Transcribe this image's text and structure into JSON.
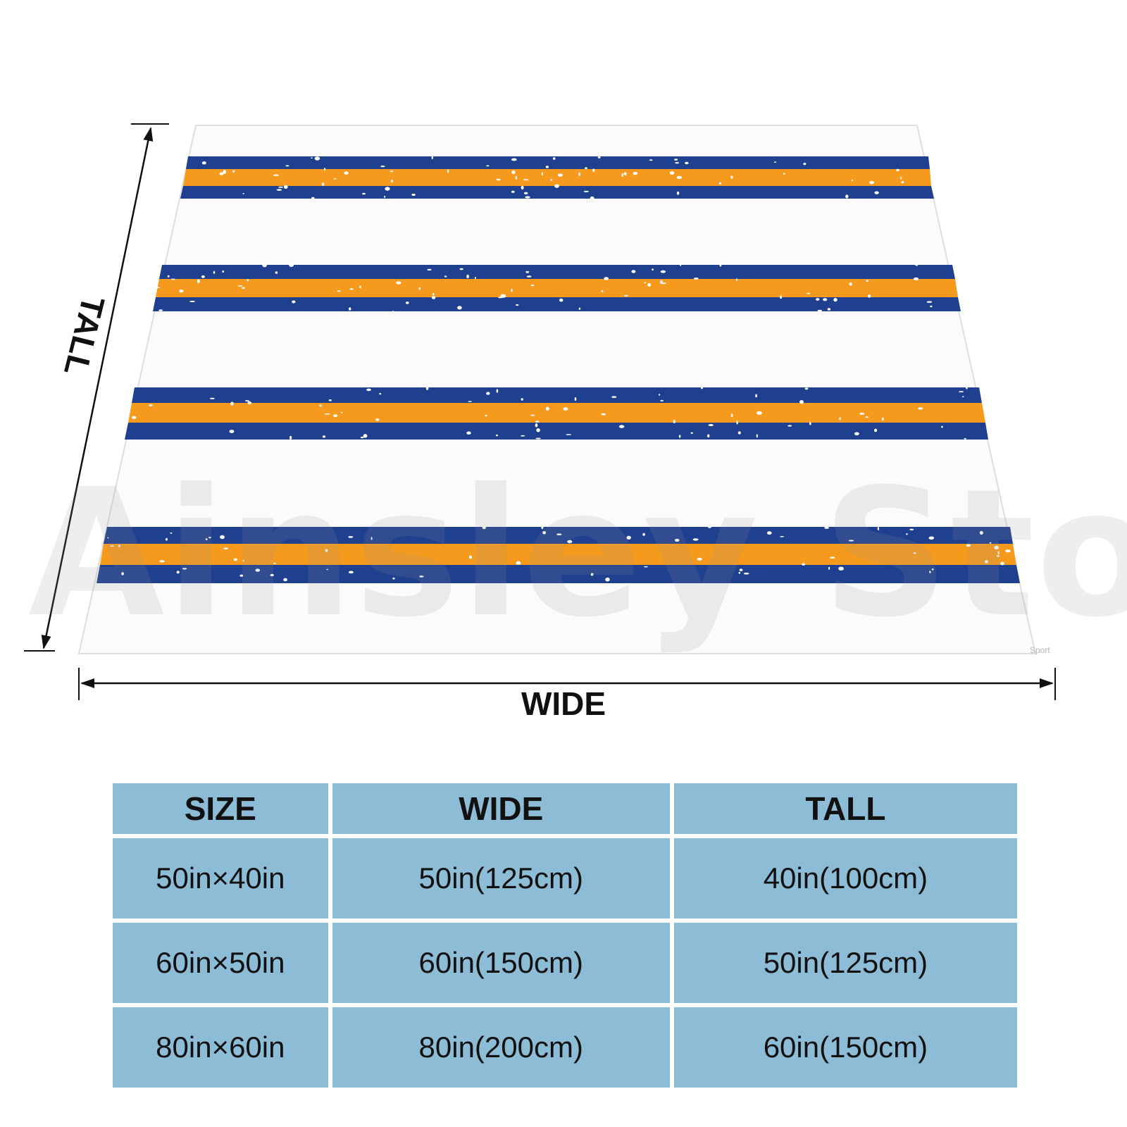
{
  "dimension_labels": {
    "wide": "WIDE",
    "tall": "TALL"
  },
  "watermark": "Ainsley Store",
  "corner_mark": "Sport",
  "colors": {
    "stripe_blue": "#1f3f8f",
    "stripe_orange": "#f59a1c",
    "table_bg": "#8dbcd6"
  },
  "size_table": {
    "headers": [
      "SIZE",
      "WIDE",
      "TALL"
    ],
    "rows": [
      [
        "50in×40in",
        "50in(125cm)",
        "40in(100cm)"
      ],
      [
        "60in×50in",
        "60in(150cm)",
        "50in(125cm)"
      ],
      [
        "80in×60in",
        "80in(200cm)",
        "60in(150cm)"
      ]
    ]
  }
}
